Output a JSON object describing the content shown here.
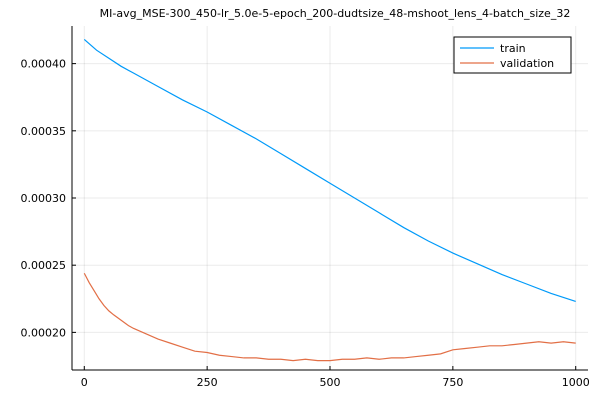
{
  "chart_data": {
    "type": "line",
    "title": "MI-avg_MSE-300_450-lr_5.0e-5-epoch_200-dudtsize_48-mshoot_lens_4-batch_size_32",
    "xlabel": "",
    "ylabel": "",
    "xlim": [
      -25,
      1025
    ],
    "ylim": [
      0.000172,
      0.000428
    ],
    "x_ticks": [
      0,
      250,
      500,
      750,
      1000
    ],
    "x_tick_labels": [
      "0",
      "250",
      "500",
      "750",
      "1000"
    ],
    "y_ticks": [
      0.0002,
      0.00025,
      0.0003,
      0.00035,
      0.0004
    ],
    "y_tick_labels": [
      "0.00020",
      "0.00025",
      "0.00030",
      "0.00035",
      "0.00040"
    ],
    "grid": true,
    "legend_position": "top-right",
    "series": [
      {
        "name": "train",
        "color": "#009af9",
        "x": [
          0,
          25,
          50,
          75,
          100,
          150,
          200,
          250,
          300,
          350,
          400,
          450,
          500,
          550,
          600,
          650,
          700,
          750,
          800,
          850,
          900,
          950,
          1000
        ],
        "y": [
          0.000418,
          0.00041,
          0.000404,
          0.000398,
          0.000393,
          0.000383,
          0.000373,
          0.000364,
          0.000354,
          0.000344,
          0.000333,
          0.000322,
          0.000311,
          0.0003,
          0.000289,
          0.000278,
          0.000268,
          0.000259,
          0.000251,
          0.000243,
          0.000236,
          0.000229,
          0.000223
        ]
      },
      {
        "name": "validation",
        "color": "#e26f46",
        "x": [
          0,
          10,
          20,
          30,
          40,
          50,
          60,
          75,
          90,
          100,
          125,
          150,
          175,
          200,
          225,
          250,
          275,
          300,
          325,
          350,
          375,
          400,
          425,
          450,
          475,
          500,
          525,
          550,
          575,
          600,
          625,
          650,
          675,
          700,
          725,
          750,
          775,
          800,
          825,
          850,
          875,
          900,
          925,
          950,
          975,
          1000
        ],
        "y": [
          0.000244,
          0.000237,
          0.000231,
          0.000225,
          0.00022,
          0.000216,
          0.000213,
          0.000209,
          0.000205,
          0.000203,
          0.000199,
          0.000195,
          0.000192,
          0.000189,
          0.000186,
          0.000185,
          0.000183,
          0.000182,
          0.000181,
          0.000181,
          0.00018,
          0.00018,
          0.000179,
          0.00018,
          0.000179,
          0.000179,
          0.00018,
          0.00018,
          0.000181,
          0.00018,
          0.000181,
          0.000181,
          0.000182,
          0.000183,
          0.000184,
          0.000187,
          0.000188,
          0.000189,
          0.00019,
          0.00019,
          0.000191,
          0.000192,
          0.000193,
          0.000192,
          0.000193,
          0.000192
        ]
      }
    ]
  }
}
